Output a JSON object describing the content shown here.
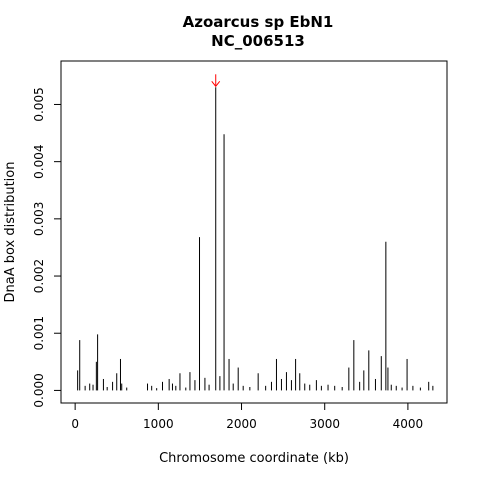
{
  "chart_data": {
    "type": "bar",
    "title": "Azoarcus sp EbN1",
    "subtitle": "NC_006513",
    "xlabel": "Chromosome coordinate (kb)",
    "ylabel": "DnaA box distribution",
    "xlim": [
      -170,
      4470
    ],
    "ylim": [
      -0.00022,
      0.00576
    ],
    "x_ticks": [
      0,
      1000,
      2000,
      3000,
      4000
    ],
    "x_tick_labels": [
      "0",
      "1000",
      "2000",
      "3000",
      "4000"
    ],
    "y_ticks": [
      0,
      0.001,
      0.002,
      0.003,
      0.004,
      0.005
    ],
    "y_tick_labels": [
      "0.000",
      "0.001",
      "0.002",
      "0.003",
      "0.004",
      "0.005"
    ],
    "grid": false,
    "legend": "none",
    "bar_color": "#000000",
    "arrow": {
      "x": 1690,
      "y": 0.0053,
      "color": "#ff0000"
    },
    "x": [
      30,
      55,
      120,
      175,
      215,
      255,
      270,
      340,
      385,
      450,
      500,
      545,
      560,
      620,
      870,
      920,
      980,
      1050,
      1130,
      1170,
      1210,
      1260,
      1330,
      1380,
      1440,
      1495,
      1560,
      1610,
      1690,
      1740,
      1790,
      1850,
      1900,
      1960,
      2020,
      2100,
      2200,
      2290,
      2360,
      2420,
      2480,
      2540,
      2600,
      2650,
      2700,
      2760,
      2820,
      2900,
      2960,
      3040,
      3120,
      3210,
      3290,
      3350,
      3420,
      3470,
      3530,
      3610,
      3680,
      3735,
      3760,
      3800,
      3860,
      3930,
      3990,
      4060,
      4150,
      4250,
      4300
    ],
    "values": [
      0.00035,
      0.00088,
      8e-05,
      0.00012,
      0.0001,
      0.0005,
      0.00098,
      0.0002,
      6e-05,
      0.00015,
      0.0003,
      0.00055,
      0.00012,
      5e-05,
      0.00012,
      8e-05,
      4e-05,
      0.00015,
      0.0002,
      0.00012,
      8e-05,
      0.0003,
      5e-05,
      0.00032,
      0.00018,
      0.00268,
      0.00022,
      0.0001,
      0.0053,
      0.00025,
      0.00448,
      0.00055,
      0.00012,
      0.0004,
      8e-05,
      6e-05,
      0.0003,
      8e-05,
      0.00015,
      0.00055,
      0.0002,
      0.00032,
      0.00018,
      0.00055,
      0.0003,
      0.00012,
      0.0001,
      0.00018,
      8e-05,
      0.0001,
      8e-05,
      6e-05,
      0.0004,
      0.00088,
      0.00015,
      0.00035,
      0.0007,
      0.0002,
      0.0006,
      0.0026,
      0.0004,
      0.0001,
      8e-05,
      5e-05,
      0.00055,
      8e-05,
      5e-05,
      0.00015,
      8e-05
    ]
  }
}
